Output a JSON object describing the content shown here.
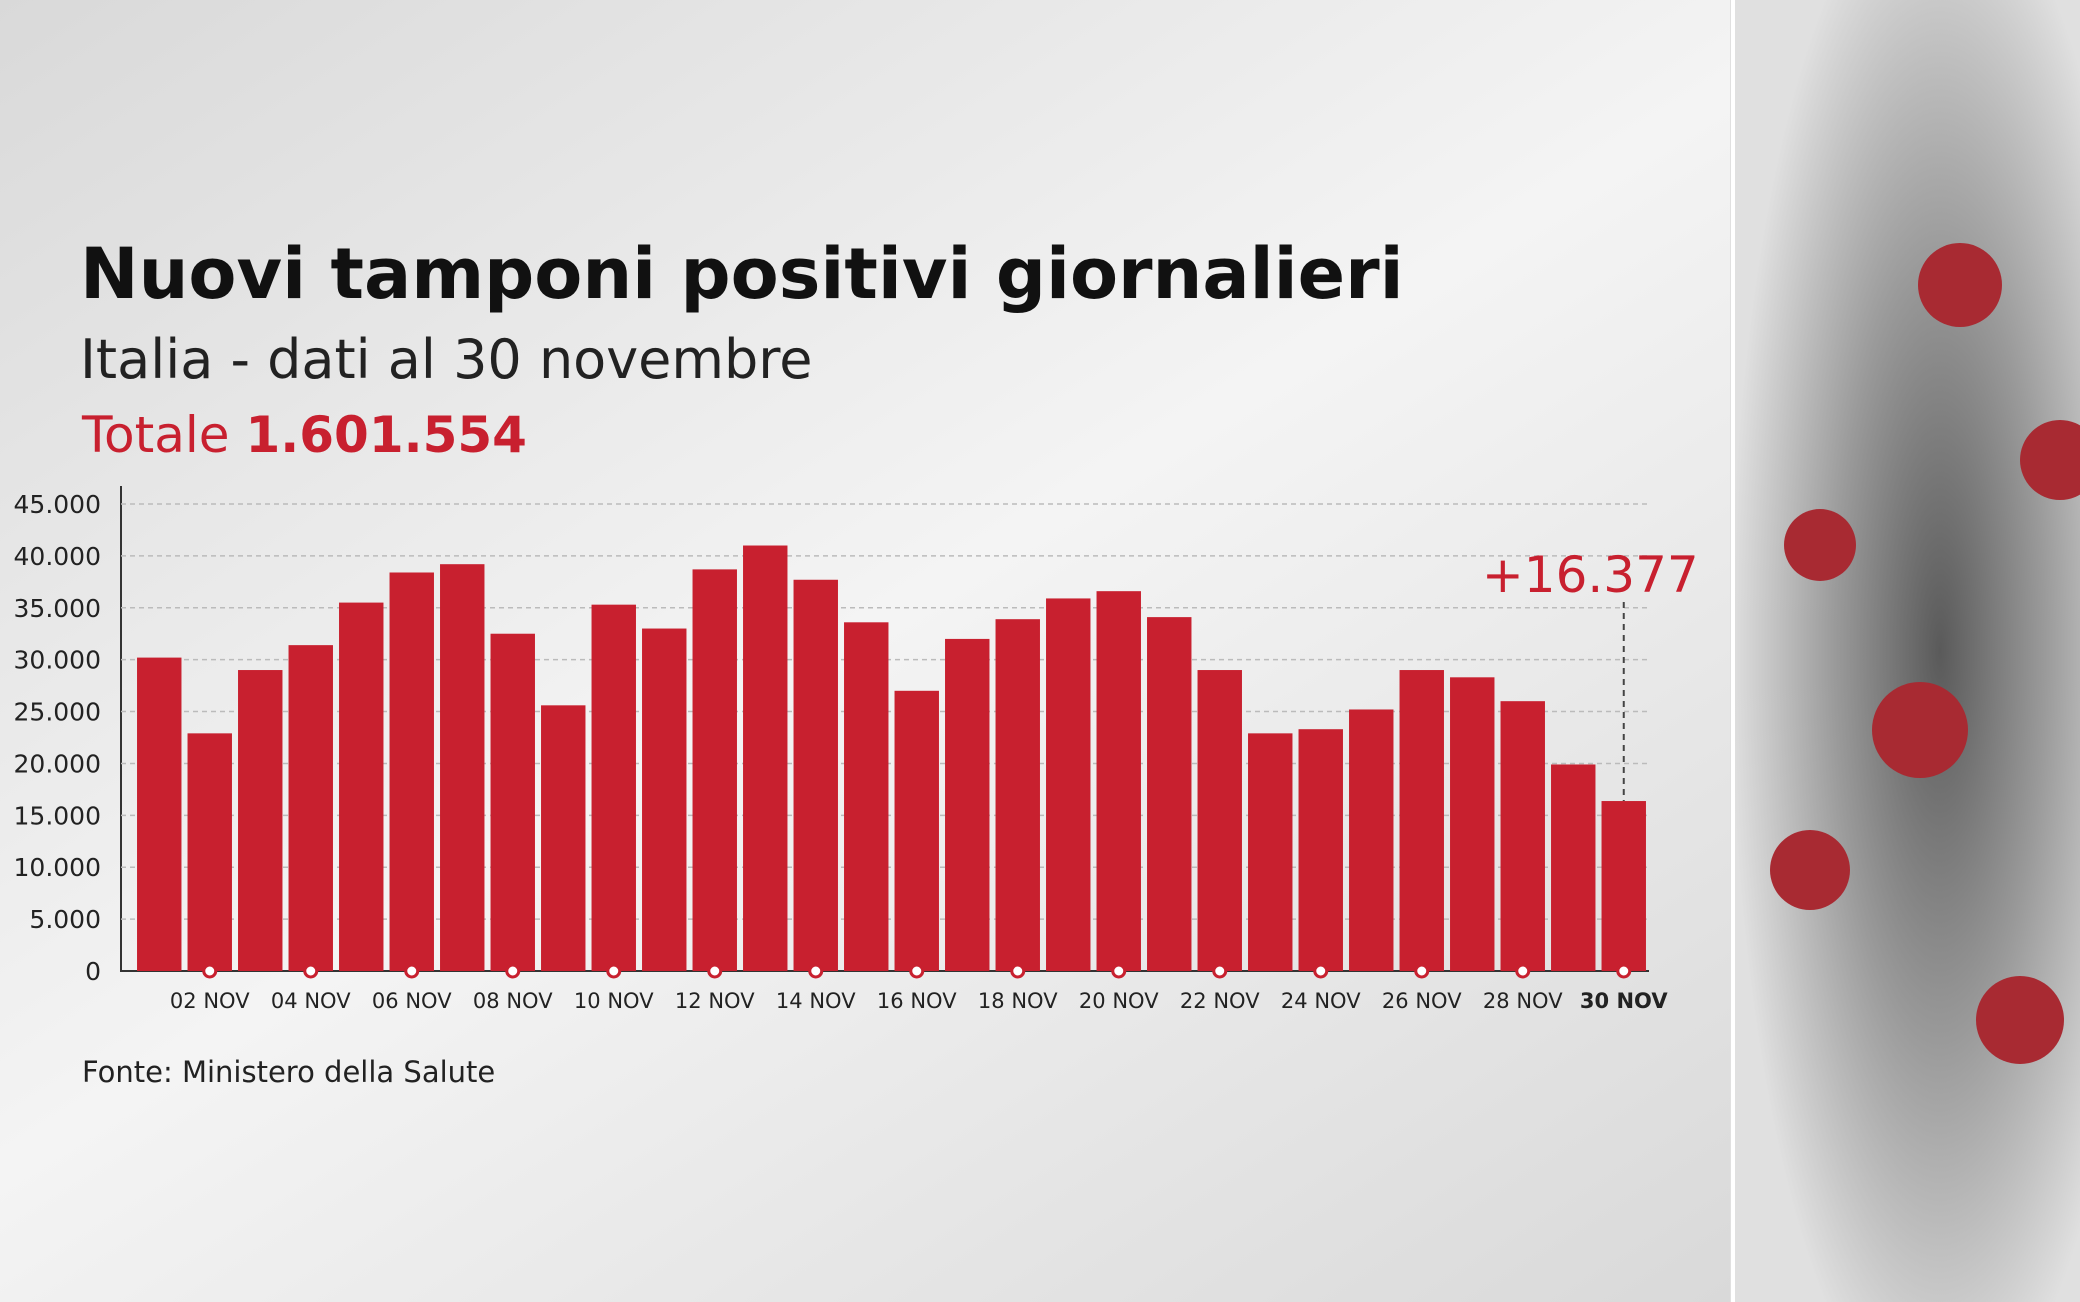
{
  "chart_data": {
    "type": "bar",
    "title": "Nuovi tamponi positivi giornalieri",
    "subtitle": "Italia - dati al 30 novembre",
    "total_label": "Totale",
    "total_value": "1.601.554",
    "source": "Fonte: Ministero della Salute",
    "categories": [
      null,
      "02 NOV",
      null,
      "04 NOV",
      null,
      "06 NOV",
      null,
      "08 NOV",
      null,
      "10 NOV",
      null,
      "12 NOV",
      null,
      "14 NOV",
      null,
      "16 NOV",
      null,
      "18 NOV",
      null,
      "20 NOV",
      null,
      "22 NOV",
      null,
      "24 NOV",
      null,
      "26 NOV",
      null,
      "28 NOV",
      null,
      "30 NOV"
    ],
    "values": [
      30200,
      22900,
      29000,
      31400,
      35500,
      38400,
      39200,
      32500,
      25600,
      35300,
      33000,
      38700,
      41000,
      37700,
      33600,
      27000,
      32000,
      33900,
      35900,
      36600,
      34100,
      29000,
      22900,
      23300,
      25200,
      29000,
      28300,
      26000,
      19900,
      16377
    ],
    "value_labels": [
      null,
      null,
      null,
      null,
      null,
      null,
      null,
      null,
      null,
      null,
      null,
      null,
      null,
      null,
      null,
      null,
      null,
      null,
      null,
      null,
      null,
      null,
      null,
      null,
      null,
      null,
      null,
      null,
      null,
      "+16.377"
    ],
    "color": "#c8202f",
    "ylim": [
      0,
      45000
    ],
    "yticks": [
      0,
      {
        "value": 5000,
        "label": "5.000"
      },
      {
        "value": 10000,
        "label": "10.000"
      },
      {
        "value": 15000,
        "label": "15.000"
      },
      {
        "value": 20000,
        "label": "20.000"
      },
      {
        "value": 25000,
        "label": "25.000"
      },
      {
        "value": 30000,
        "label": "30.000"
      },
      {
        "value": 35000,
        "label": "35.000"
      },
      {
        "value": 40000,
        "label": "40.000"
      },
      {
        "value": 45000,
        "label": "45.000"
      }
    ],
    "grid": true
  }
}
